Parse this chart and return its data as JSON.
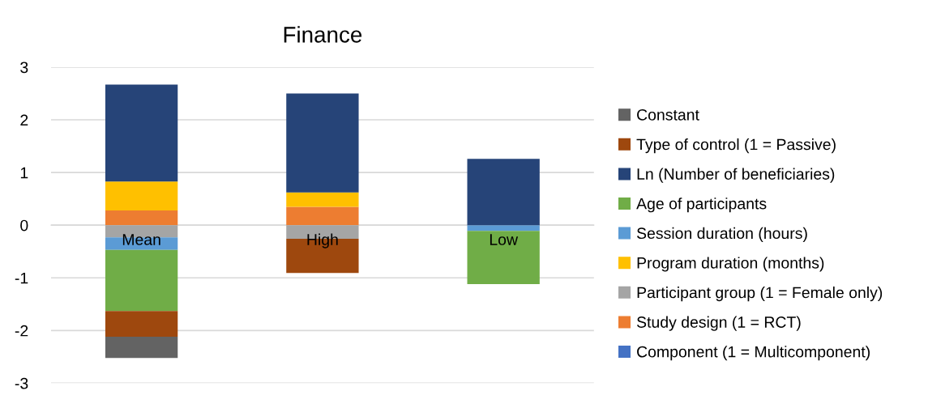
{
  "chart_data": {
    "type": "bar",
    "title": "Finance",
    "stacked": true,
    "categories": [
      "Mean",
      "High",
      "Low"
    ],
    "series": [
      {
        "name": "Component (1 = Multicomponent)",
        "color": "#4472c4",
        "values": [
          0,
          0,
          0
        ]
      },
      {
        "name": "Study design (1 = RCT)",
        "color": "#ed7d31",
        "values": [
          0.28,
          0.35,
          0
        ]
      },
      {
        "name": "Participant group (1 = Female only)",
        "color": "#a5a5a5",
        "values": [
          -0.23,
          -0.26,
          null
        ]
      },
      {
        "name": "Program duration (months)",
        "color": "#ffc000",
        "values": [
          0.55,
          0.27,
          0
        ]
      },
      {
        "name": "Session duration (hours)",
        "color": "#5b9bd5",
        "values": [
          -0.24,
          0,
          -0.11
        ]
      },
      {
        "name": "Age of participants",
        "color": "#70ad47",
        "values": [
          -1.16,
          0,
          -1.01
        ]
      },
      {
        "name": "Ln (Number of beneficiaries)",
        "color": "#264478",
        "values": [
          1.84,
          1.88,
          1.26
        ]
      },
      {
        "name": "Type of control (1 = Passive)",
        "color": "#9e480e",
        "values": [
          -0.49,
          -0.65,
          0
        ]
      },
      {
        "name": "Constant",
        "color": "#636363",
        "values": [
          -0.4,
          0,
          0
        ]
      }
    ],
    "ylim": [
      -3,
      3
    ],
    "yticks": [
      -3,
      -2,
      -1,
      0,
      1,
      2,
      3
    ],
    "grid": "y",
    "legend": "right"
  }
}
